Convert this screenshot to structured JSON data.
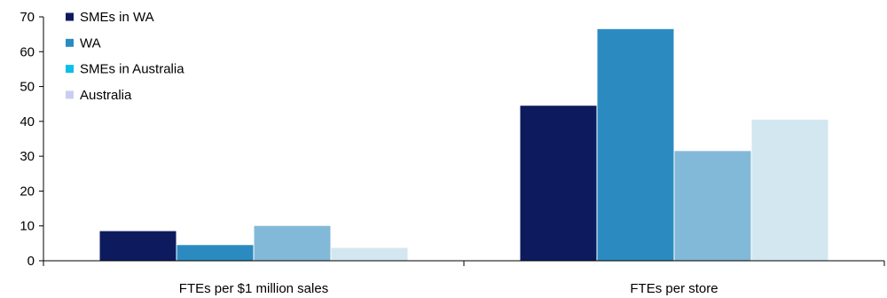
{
  "chart_data": {
    "type": "bar",
    "title": "",
    "xlabel": "",
    "ylabel": "",
    "categories": [
      "FTEs per $1 million sales",
      "FTEs per store"
    ],
    "series": [
      {
        "name": "SMEs in WA",
        "values": [
          8.5,
          44.5
        ],
        "color": "#0d1b5e"
      },
      {
        "name": "WA",
        "values": [
          4.5,
          66.5
        ],
        "color": "#2b8bc0"
      },
      {
        "name": "SMEs in Australia",
        "values": [
          10.0,
          31.5
        ],
        "color": "#83b9d8"
      },
      {
        "name": "Australia",
        "values": [
          3.7,
          40.5
        ],
        "color": "#d3e7f0"
      }
    ],
    "legend_colors": [
      "#0d1b5e",
      "#2b8bc0",
      "#0bbfe8",
      "#c9cdf2"
    ],
    "ylim": [
      0,
      70
    ],
    "yticks": [
      0,
      10,
      20,
      30,
      40,
      50,
      60,
      70
    ],
    "grid": false,
    "legend_position": "top-left"
  }
}
